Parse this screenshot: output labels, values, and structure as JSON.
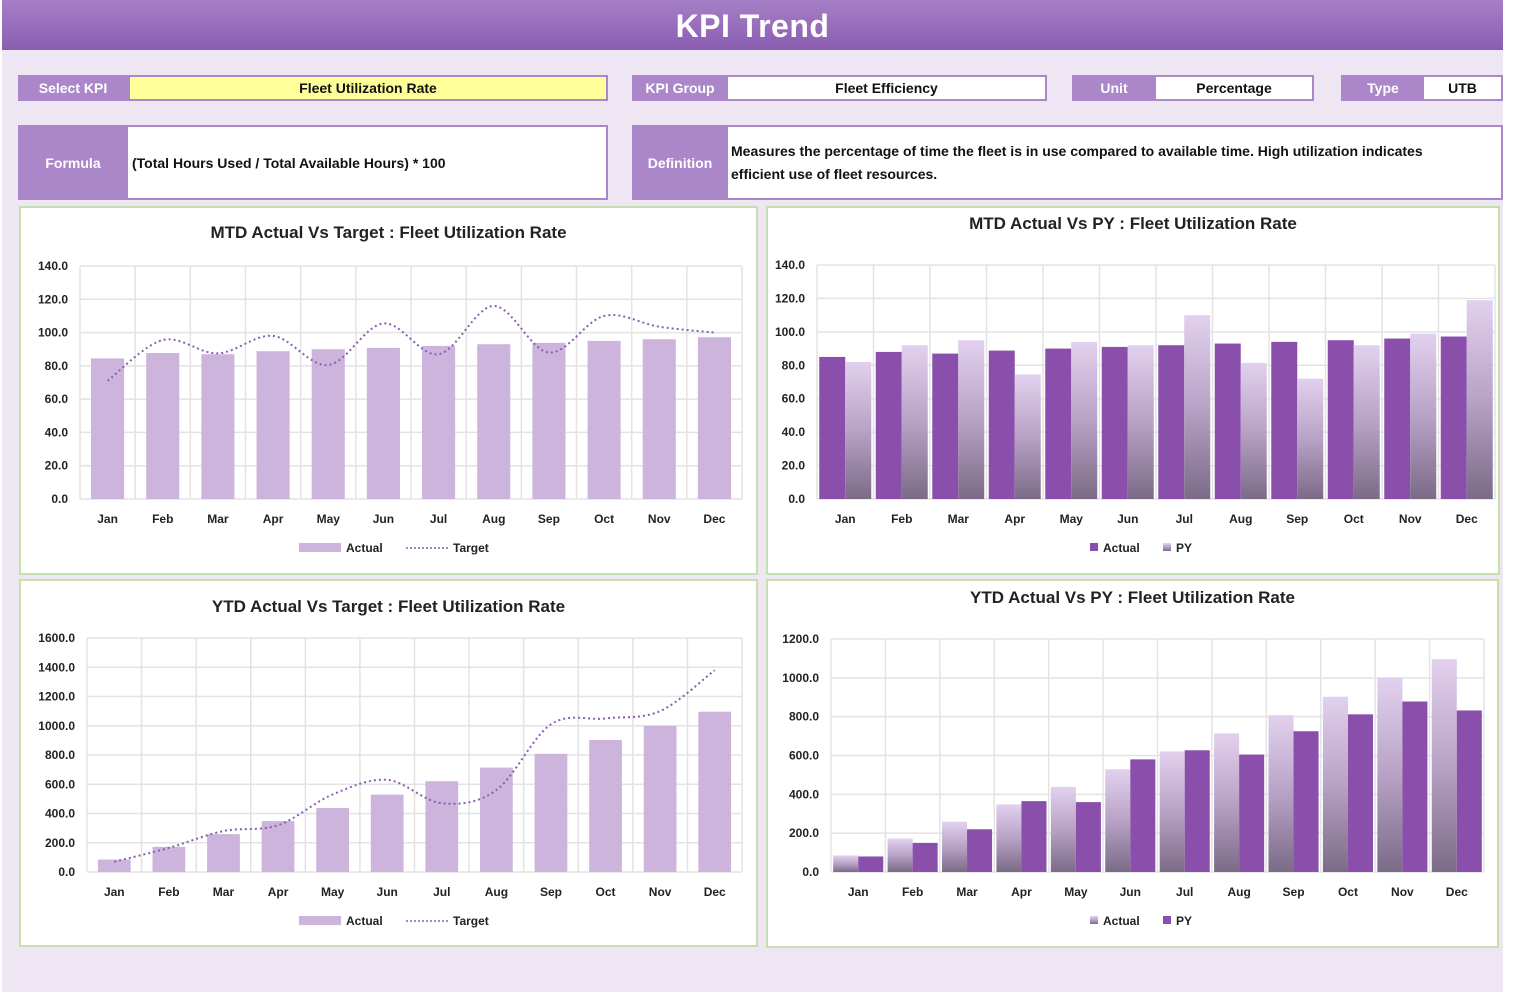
{
  "title": "KPI Trend",
  "header": {
    "select_kpi_label": "Select KPI",
    "select_kpi_value": "Fleet Utilization Rate",
    "kpi_group_label": "KPI Group",
    "kpi_group_value": "Fleet Efficiency",
    "unit_label": "Unit",
    "unit_value": "Percentage",
    "type_label": "Type",
    "type_value": "UTB",
    "formula_label": "Formula",
    "formula_value": "(Total Hours Used / Total Available Hours) * 100",
    "definition_label": "Definition",
    "definition_value": "Measures the percentage of time the fleet is in use compared to available time. High utilization indicates efficient use of fleet resources."
  },
  "colors": {
    "accent": "#ab86c9",
    "actual_light": "#cdb4dd",
    "actual_dark": "#8a4fab",
    "target_line": "#8a5db0",
    "panel_border": "#c5dfae"
  },
  "chart_data": [
    {
      "type": "bar",
      "title": "MTD Actual Vs Target : Fleet Utilization Rate",
      "categories": [
        "Jan",
        "Feb",
        "Mar",
        "Apr",
        "May",
        "Jun",
        "Jul",
        "Aug",
        "Sep",
        "Oct",
        "Nov",
        "Dec"
      ],
      "ylim": [
        0,
        140
      ],
      "yticks": [
        "0.0",
        "20.0",
        "40.0",
        "60.0",
        "80.0",
        "100.0",
        "120.0",
        "140.0"
      ],
      "grid": true,
      "legend": "bottom",
      "series": [
        {
          "name": "Actual",
          "kind": "bar",
          "values": [
            84.5,
            87.7,
            87,
            88.8,
            90,
            90.8,
            92,
            93,
            93.8,
            95,
            96,
            97.2
          ]
        },
        {
          "name": "Target",
          "kind": "line",
          "values": [
            71,
            95.5,
            87.5,
            98,
            80.5,
            105.5,
            87,
            116,
            88,
            110,
            103.5,
            100
          ]
        }
      ]
    },
    {
      "type": "bar",
      "title": "MTD Actual Vs PY : Fleet Utilization Rate",
      "categories": [
        "Jan",
        "Feb",
        "Mar",
        "Apr",
        "May",
        "Jun",
        "Jul",
        "Aug",
        "Sep",
        "Oct",
        "Nov",
        "Dec"
      ],
      "ylim": [
        0,
        140
      ],
      "yticks": [
        "0.0",
        "20.0",
        "40.0",
        "60.0",
        "80.0",
        "100.0",
        "120.0",
        "140.0"
      ],
      "grid": true,
      "legend": "bottom",
      "series": [
        {
          "name": "Actual",
          "kind": "bar",
          "values": [
            85,
            88,
            87,
            88.8,
            90,
            91,
            92,
            93,
            94,
            95,
            96,
            97.2
          ]
        },
        {
          "name": "PY",
          "kind": "bar",
          "values": [
            82,
            92,
            95,
            74.5,
            94,
            92,
            110,
            81.5,
            72,
            92,
            99,
            119
          ]
        }
      ]
    },
    {
      "type": "bar",
      "title": "YTD Actual Vs Target : Fleet Utilization Rate",
      "categories": [
        "Jan",
        "Feb",
        "Mar",
        "Apr",
        "May",
        "Jun",
        "Jul",
        "Aug",
        "Sep",
        "Oct",
        "Nov",
        "Dec"
      ],
      "ylim": [
        0,
        1600
      ],
      "yticks": [
        "0.0",
        "200.0",
        "400.0",
        "600.0",
        "800.0",
        "1000.0",
        "1200.0",
        "1400.0",
        "1600.0"
      ],
      "grid": true,
      "legend": "bottom",
      "series": [
        {
          "name": "Actual",
          "kind": "bar",
          "values": [
            85,
            172,
            259,
            348,
            438,
            529,
            621,
            714,
            808,
            903,
            999,
            1096
          ]
        },
        {
          "name": "Target",
          "kind": "line",
          "values": [
            70,
            165,
            280,
            320,
            530,
            630,
            470,
            560,
            1010,
            1050,
            1100,
            1380
          ]
        }
      ]
    },
    {
      "type": "bar",
      "title": "YTD Actual Vs PY : Fleet Utilization Rate",
      "categories": [
        "Jan",
        "Feb",
        "Mar",
        "Apr",
        "May",
        "Jun",
        "Jul",
        "Aug",
        "Sep",
        "Oct",
        "Nov",
        "Dec"
      ],
      "ylim": [
        0,
        1200
      ],
      "yticks": [
        "0.0",
        "200.0",
        "400.0",
        "600.0",
        "800.0",
        "1000.0",
        "1200.0"
      ],
      "grid": true,
      "legend": "bottom",
      "series": [
        {
          "name": "Actual",
          "kind": "bar",
          "values": [
            85,
            172,
            259,
            348,
            438,
            529,
            621,
            714,
            808,
            903,
            999,
            1096
          ]
        },
        {
          "name": "PY",
          "kind": "bar",
          "values": [
            80,
            150,
            220,
            365,
            360,
            580,
            627,
            605,
            725,
            812,
            878,
            832
          ]
        }
      ]
    }
  ]
}
